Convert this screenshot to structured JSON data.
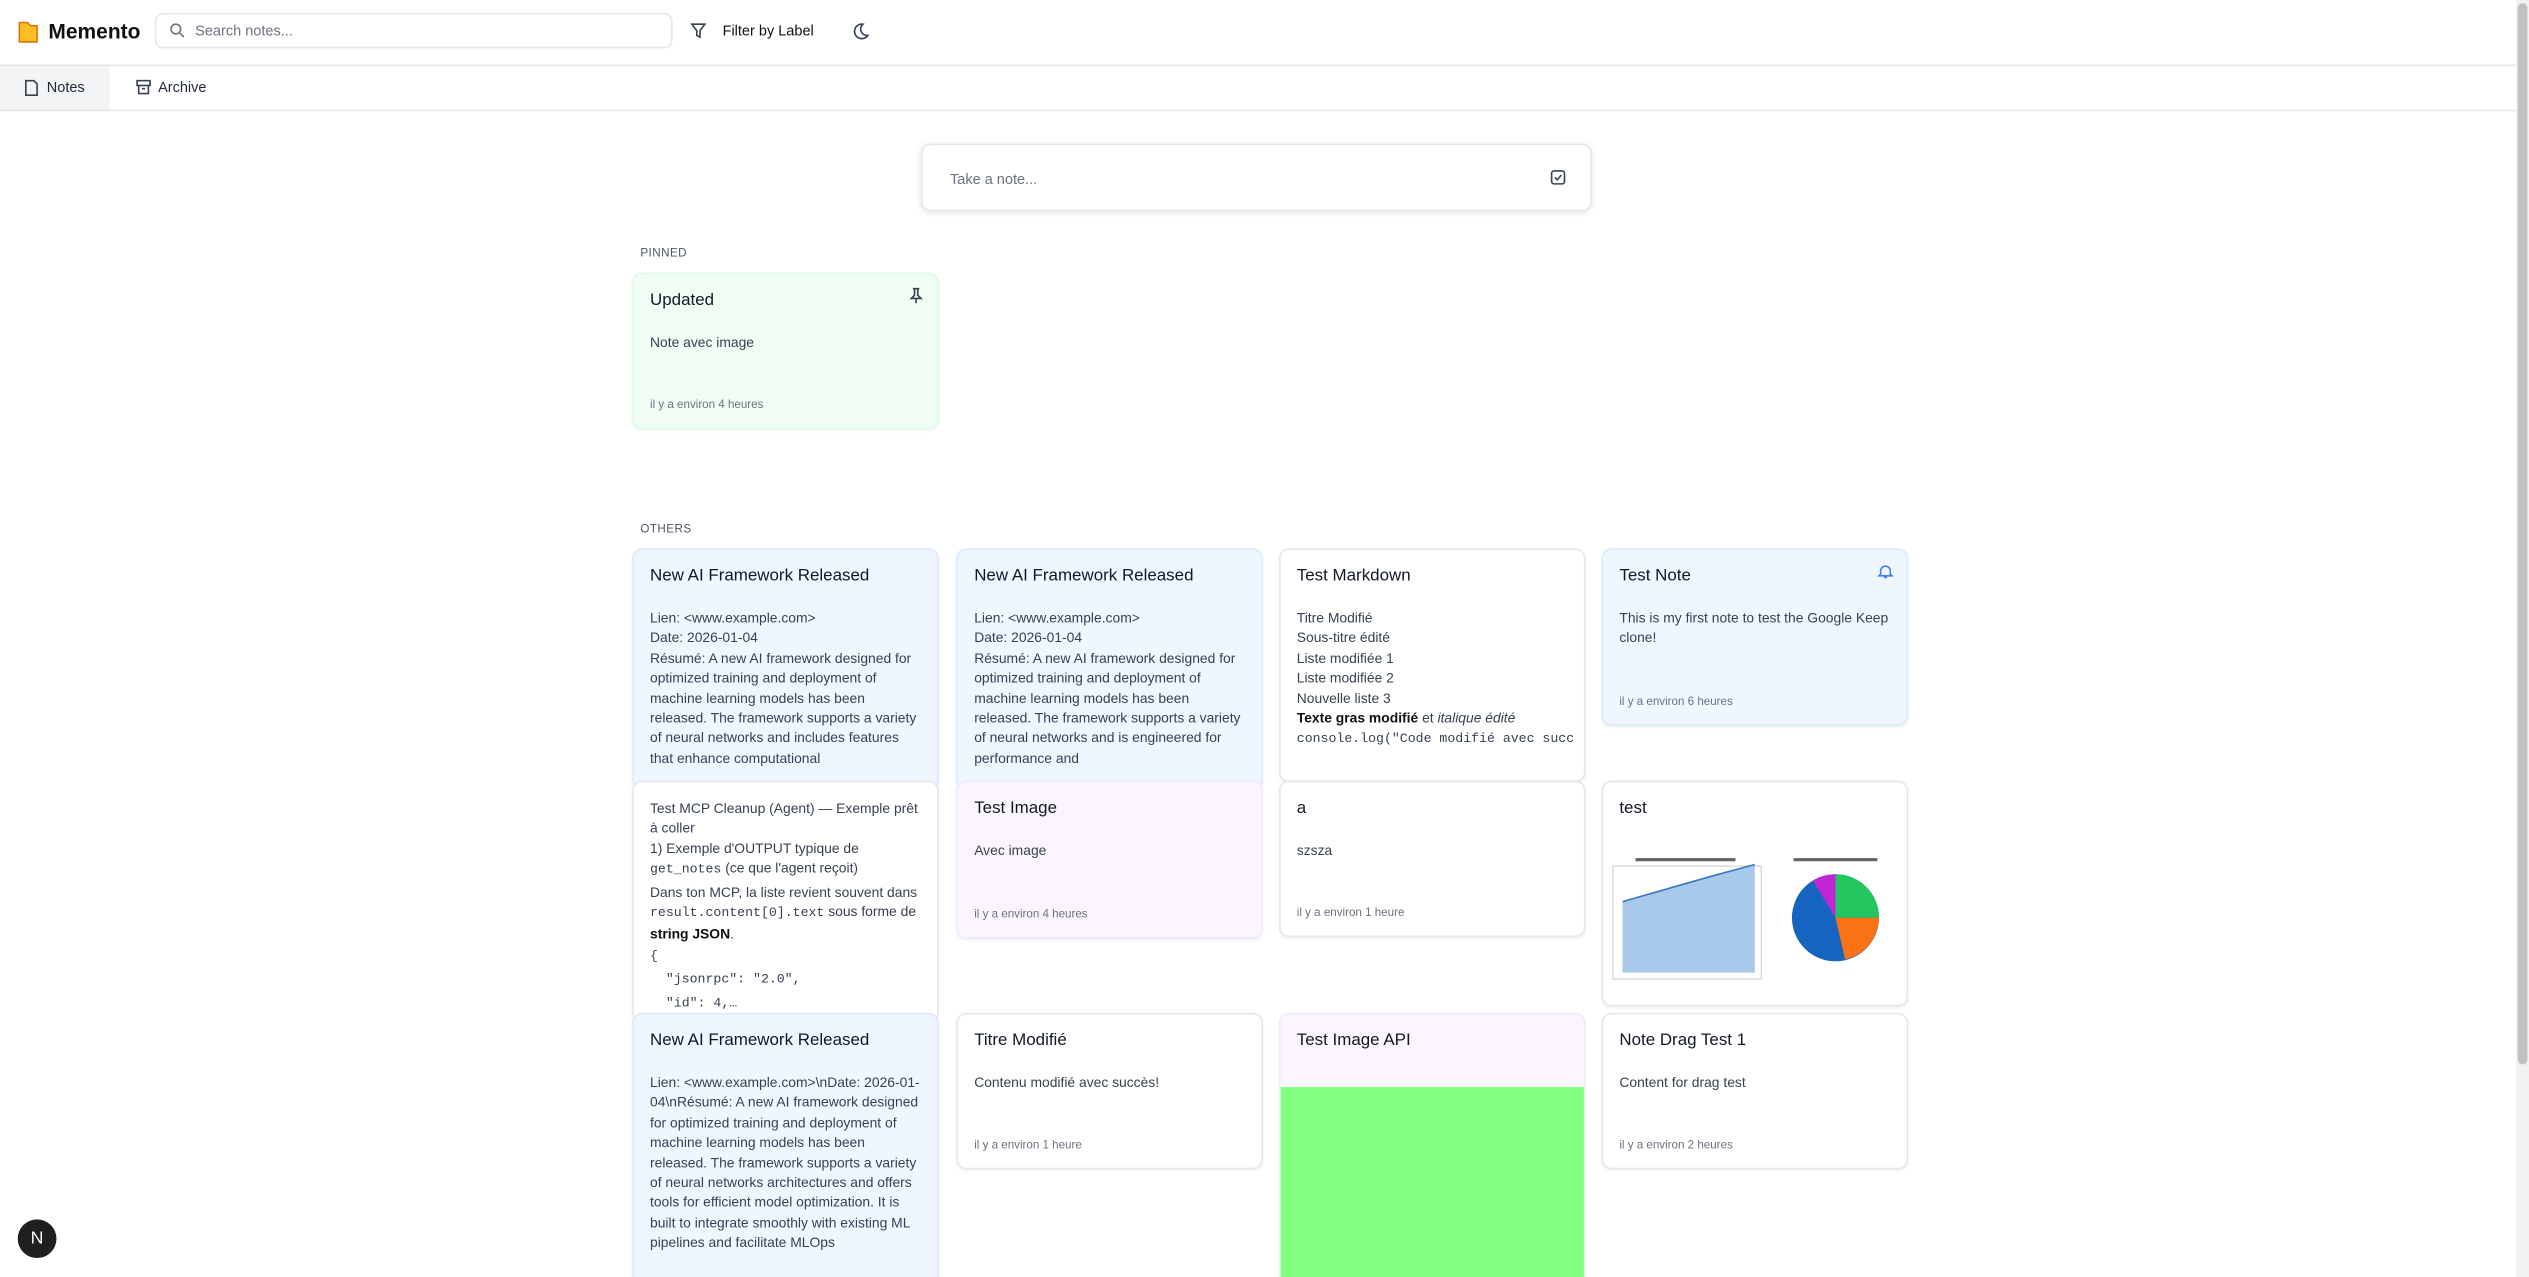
{
  "header": {
    "app_name": "Memento",
    "search_placeholder": "Search notes...",
    "filter_button": "Filter by Label"
  },
  "tabs": [
    "Notes",
    "Archive"
  ],
  "composer_placeholder": "Take a note...",
  "sections": {
    "pinned": "PINNED",
    "others": "OTHERS"
  },
  "pinned_notes": [
    {
      "title": "Updated",
      "color": "green",
      "icon": "pin",
      "lines": [
        "Note avec image"
      ],
      "time": "il y a environ 4 heures"
    }
  ],
  "notes": [
    {
      "title": "New AI Framework Released",
      "color": "blue",
      "lines": [
        "Lien: <www.example.com>",
        "Date: 2026-01-04",
        "Résumé: A new AI framework designed for optimized training and deployment of machine learning models has been released. The framework supports a variety of neural networks and includes features that enhance computational"
      ]
    },
    {
      "title": "New AI Framework Released",
      "color": "blue",
      "lines": [
        "Lien: <www.example.com>",
        "Date: 2026-01-04",
        "Résumé: A new AI framework designed for optimized training and deployment of machine learning models has been released. The framework supports a variety of neural networks and is engineered for performance and"
      ]
    },
    {
      "title": "Test Markdown",
      "color": "white",
      "lines": [
        "Titre Modifié",
        "Sous-titre édité",
        "Liste modifiée 1",
        "Liste modifiée 2",
        "Nouvelle liste 3",
        [
          {
            "text": "Texte gras modifié",
            "style": "bold"
          },
          {
            "text": " et "
          },
          {
            "text": "italique édité",
            "style": "italic"
          }
        ],
        [
          {
            "text": "console.log(\"Code modifié avec succ",
            "style": "code"
          }
        ]
      ]
    },
    {
      "title": "Test Note",
      "color": "blue",
      "icon": "bell",
      "lines": [
        "This is my first note to test the Google Keep clone!"
      ],
      "time": "il y a environ 6 heures"
    },
    {
      "color": "white",
      "lines": [
        "Test MCP Cleanup (Agent) — Exemple prêt à coller",
        "1) Exemple d'OUTPUT typique de",
        [
          {
            "text": "get_notes",
            "style": "code"
          },
          {
            "text": " (ce que l'agent reçoit)"
          }
        ],
        [
          {
            "text": "Dans ton MCP, la liste revient souvent dans "
          },
          {
            "text": "result.content[0].text",
            "style": "code"
          },
          {
            "text": " sous forme de "
          },
          {
            "text": "string JSON",
            "style": "bold"
          },
          {
            "text": "."
          }
        ],
        [
          {
            "text": "{",
            "style": "code"
          }
        ],
        [
          {
            "text": "  \"jsonrpc\": \"2.0\",",
            "style": "code"
          }
        ],
        [
          {
            "text": "  \"id\": 4,…",
            "style": "code"
          }
        ]
      ]
    },
    {
      "title": "Test Image",
      "color": "purple",
      "lines": [
        "Avec image"
      ],
      "time": "il y a environ 4 heures"
    },
    {
      "title": "a",
      "color": "white",
      "lines": [
        "szsza"
      ],
      "time": "il y a environ 1 heure"
    },
    {
      "title": "test",
      "color": "white",
      "charts": true
    },
    {
      "title": "New AI Framework Released",
      "color": "blue",
      "lines": [
        "Lien: <www.example.com>\\nDate: 2026-01-04\\nRésumé: A new AI framework designed for optimized training and deployment of machine learning models has been released. The framework supports a variety of neural networks architectures and offers tools for efficient model optimization. It is built to integrate smoothly with existing ML pipelines and facilitate MLOps"
      ]
    },
    {
      "title": "Titre Modifié",
      "color": "white",
      "lines": [
        "Contenu modifié avec succès!"
      ],
      "time": "il y a environ 1 heure"
    },
    {
      "title": "Test Image API",
      "color": "purple",
      "image": "green"
    },
    {
      "title": "Note Drag Test 1",
      "color": "white",
      "lines": [
        "Content for drag test"
      ],
      "time": "il y a environ 2 heures"
    }
  ],
  "dev_badge": "N"
}
